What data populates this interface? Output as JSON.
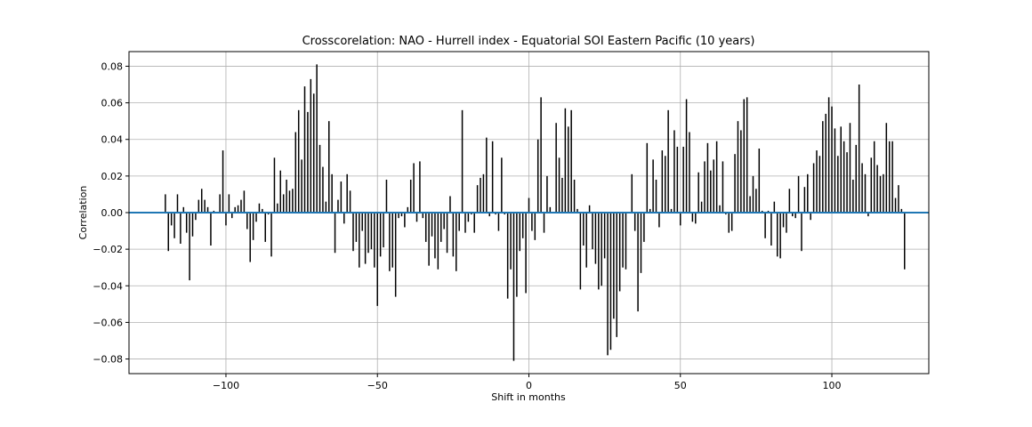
{
  "chart_data": {
    "type": "bar",
    "title": "Crosscorelation: NAO - Hurrell index - Equatorial SOI Eastern Pacific (10 years)",
    "xlabel": "Shift in months",
    "ylabel": "Correlation",
    "xlim": [
      -132,
      132
    ],
    "ylim": [
      -0.088,
      0.088
    ],
    "xticks": [
      -100,
      -50,
      0,
      50,
      100
    ],
    "xtick_labels": [
      "−100",
      "−50",
      "0",
      "50",
      "100"
    ],
    "yticks": [
      -0.08,
      -0.06,
      -0.04,
      -0.02,
      0.0,
      0.02,
      0.04,
      0.06,
      0.08
    ],
    "ytick_labels": [
      "−0.08",
      "−0.06",
      "−0.04",
      "−0.02",
      "0.00",
      "0.02",
      "0.04",
      "0.06",
      "0.08"
    ],
    "grid": true,
    "bar_color": "#000000",
    "zero_line_color": "#1f77b4",
    "x_start": -120,
    "values": [
      0.01,
      -0.021,
      -0.007,
      -0.014,
      0.01,
      -0.017,
      0.003,
      -0.011,
      -0.037,
      -0.013,
      -0.004,
      0.007,
      0.013,
      0.007,
      0.003,
      -0.018,
      0.001,
      0.0,
      0.01,
      0.034,
      -0.007,
      0.01,
      -0.003,
      0.003,
      0.004,
      0.007,
      0.012,
      -0.009,
      -0.027,
      -0.015,
      -0.005,
      0.005,
      0.002,
      -0.016,
      -0.001,
      -0.024,
      0.03,
      0.005,
      0.023,
      0.01,
      0.018,
      0.012,
      0.013,
      0.044,
      0.056,
      0.029,
      0.069,
      0.055,
      0.073,
      0.065,
      0.081,
      0.037,
      0.025,
      0.006,
      0.05,
      0.021,
      -0.022,
      0.007,
      0.017,
      -0.006,
      0.021,
      0.012,
      -0.021,
      -0.016,
      -0.03,
      -0.01,
      -0.028,
      -0.022,
      -0.02,
      -0.03,
      -0.051,
      -0.024,
      -0.019,
      0.018,
      -0.032,
      -0.03,
      -0.046,
      -0.003,
      -0.002,
      -0.008,
      0.003,
      0.018,
      0.027,
      -0.005,
      0.028,
      -0.003,
      -0.016,
      -0.029,
      -0.013,
      -0.025,
      -0.031,
      -0.016,
      -0.009,
      -0.022,
      0.009,
      -0.024,
      -0.032,
      -0.01,
      0.056,
      -0.011,
      -0.005,
      -0.001,
      -0.011,
      0.015,
      0.019,
      0.021,
      0.041,
      -0.002,
      0.039,
      -0.001,
      -0.01,
      0.03,
      -0.001,
      -0.047,
      -0.031,
      -0.081,
      -0.046,
      -0.021,
      -0.014,
      -0.044,
      0.008,
      -0.01,
      -0.015,
      0.04,
      0.063,
      -0.011,
      0.02,
      0.003,
      0.0,
      0.049,
      0.03,
      0.019,
      0.057,
      0.047,
      0.056,
      0.018,
      0.002,
      -0.042,
      -0.018,
      -0.03,
      0.004,
      -0.02,
      -0.028,
      -0.042,
      -0.04,
      -0.025,
      -0.078,
      -0.075,
      -0.058,
      -0.068,
      -0.043,
      -0.03,
      -0.031,
      0.0,
      0.021,
      -0.01,
      -0.054,
      -0.033,
      -0.016,
      0.038,
      0.002,
      0.029,
      0.018,
      -0.008,
      0.034,
      0.031,
      0.056,
      0.002,
      0.045,
      0.036,
      -0.007,
      0.036,
      0.062,
      0.044,
      -0.005,
      -0.006,
      0.022,
      0.006,
      0.028,
      0.038,
      0.023,
      0.029,
      0.039,
      0.004,
      0.028,
      -0.001,
      -0.011,
      -0.01,
      0.032,
      0.05,
      0.045,
      0.062,
      0.063,
      0.009,
      0.02,
      0.013,
      0.035,
      0.001,
      -0.014,
      0.001,
      -0.018,
      0.006,
      -0.024,
      -0.025,
      -0.008,
      -0.011,
      0.013,
      -0.002,
      -0.003,
      0.02,
      -0.021,
      0.014,
      0.021,
      -0.004,
      0.027,
      0.034,
      0.031,
      0.05,
      0.054,
      0.063,
      0.058,
      0.046,
      0.031,
      0.047,
      0.039,
      0.033,
      0.049,
      0.018,
      0.037,
      0.07,
      0.027,
      0.021,
      -0.002,
      0.03,
      0.039,
      0.026,
      0.02,
      0.021,
      0.049,
      0.039,
      0.039,
      0.008,
      0.015,
      0.002,
      -0.031
    ]
  }
}
